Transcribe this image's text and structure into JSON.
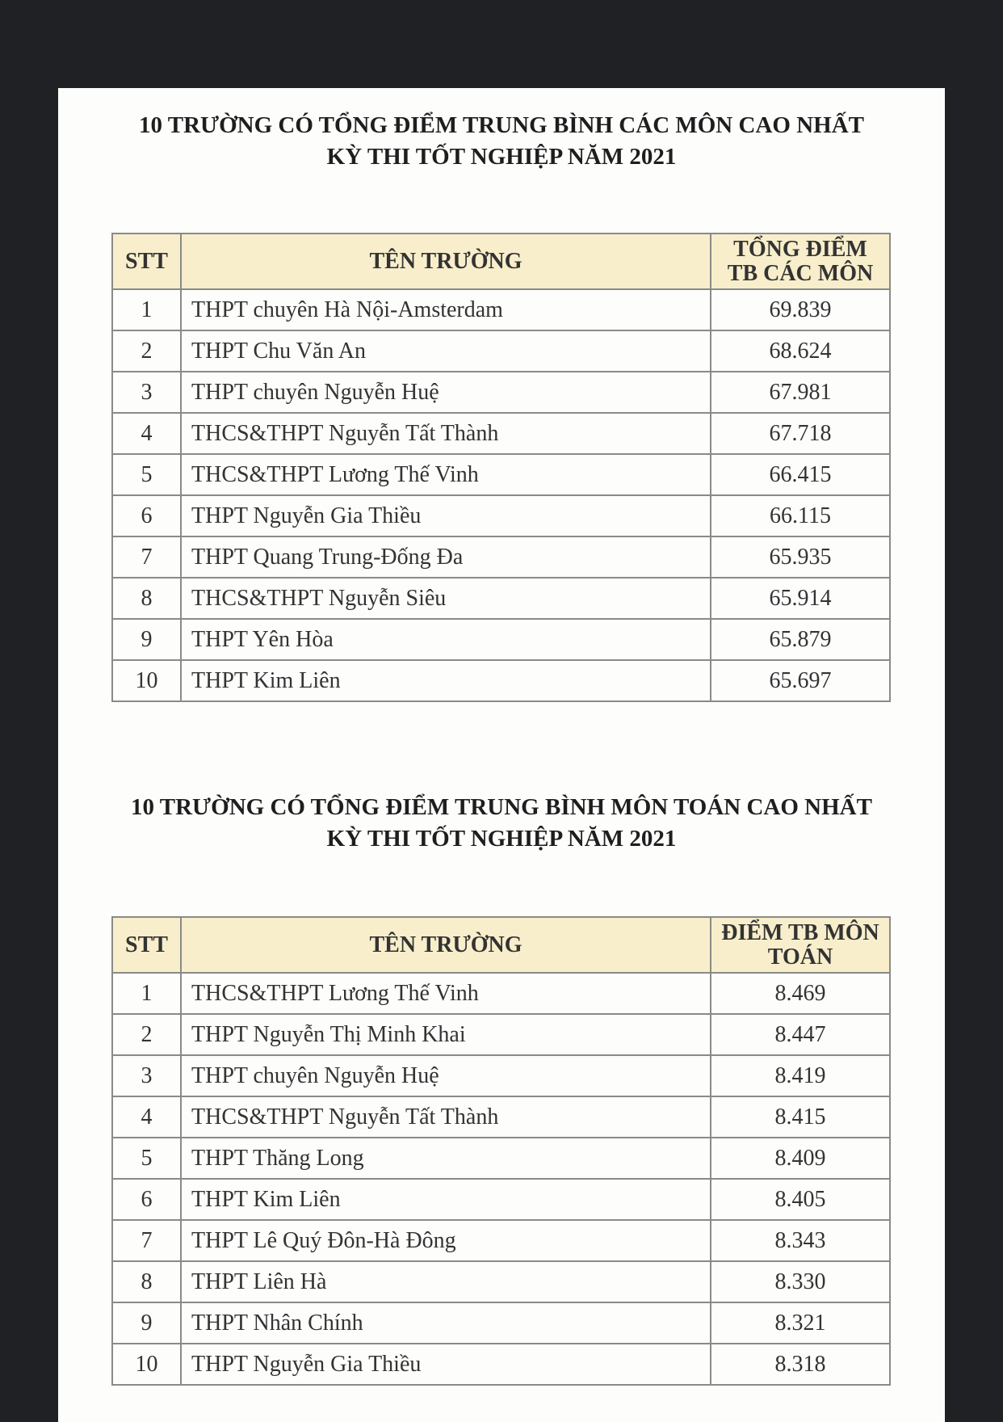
{
  "sections": [
    {
      "title_line1": "10 TRƯỜNG CÓ TỔNG ĐIỂM TRUNG BÌNH CÁC MÔN CAO NHẤT",
      "title_line2": "KỲ THI TỐT NGHIỆP NĂM 2021",
      "headers": {
        "stt": "STT",
        "school": "TÊN TRƯỜNG",
        "score_line1": "TỔNG ĐIỂM",
        "score_line2": "TB CÁC MÔN"
      },
      "rows": [
        {
          "stt": "1",
          "school": "THPT chuyên Hà Nội-Amsterdam",
          "score": "69.839"
        },
        {
          "stt": "2",
          "school": "THPT Chu Văn An",
          "score": "68.624"
        },
        {
          "stt": "3",
          "school": "THPT chuyên Nguyễn Huệ",
          "score": "67.981"
        },
        {
          "stt": "4",
          "school": "THCS&THPT Nguyễn Tất Thành",
          "score": "67.718"
        },
        {
          "stt": "5",
          "school": "THCS&THPT Lương Thế Vinh",
          "score": "66.415"
        },
        {
          "stt": "6",
          "school": "THPT Nguyễn Gia Thiều",
          "score": "66.115"
        },
        {
          "stt": "7",
          "school": "THPT Quang Trung-Đống Đa",
          "score": "65.935"
        },
        {
          "stt": "8",
          "school": "THCS&THPT Nguyễn Siêu",
          "score": "65.914"
        },
        {
          "stt": "9",
          "school": "THPT Yên Hòa",
          "score": "65.879"
        },
        {
          "stt": "10",
          "school": "THPT Kim Liên",
          "score": "65.697"
        }
      ]
    },
    {
      "title_line1": "10 TRƯỜNG CÓ TỔNG ĐIỂM TRUNG BÌNH MÔN TOÁN CAO NHẤT",
      "title_line2": "KỲ THI TỐT NGHIỆP NĂM 2021",
      "headers": {
        "stt": "STT",
        "school": "TÊN TRƯỜNG",
        "score_line1": "ĐIỂM TB MÔN",
        "score_line2": "TOÁN"
      },
      "rows": [
        {
          "stt": "1",
          "school": "THCS&THPT Lương Thế Vinh",
          "score": "8.469"
        },
        {
          "stt": "2",
          "school": "THPT Nguyễn Thị Minh Khai",
          "score": "8.447"
        },
        {
          "stt": "3",
          "school": "THPT chuyên Nguyễn Huệ",
          "score": "8.419"
        },
        {
          "stt": "4",
          "school": "THCS&THPT Nguyễn Tất Thành",
          "score": "8.415"
        },
        {
          "stt": "5",
          "school": "THPT Thăng Long",
          "score": "8.409"
        },
        {
          "stt": "6",
          "school": "THPT Kim Liên",
          "score": "8.405"
        },
        {
          "stt": "7",
          "school": "THPT Lê Quý Đôn-Hà Đông",
          "score": "8.343"
        },
        {
          "stt": "8",
          "school": "THPT Liên Hà",
          "score": "8.330"
        },
        {
          "stt": "9",
          "school": "THPT Nhân Chính",
          "score": "8.321"
        },
        {
          "stt": "10",
          "school": "THPT Nguyễn Gia Thiều",
          "score": "8.318"
        }
      ]
    }
  ]
}
